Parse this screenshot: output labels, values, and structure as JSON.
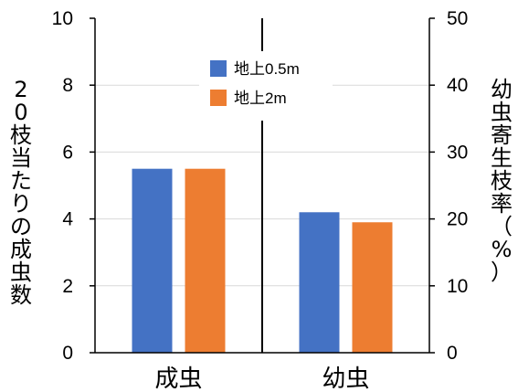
{
  "chart_data": {
    "type": "bar",
    "categories": [
      "成虫",
      "幼虫"
    ],
    "series": [
      {
        "name": "地上0.5m",
        "color": "#4472C4",
        "values": [
          5.5,
          4.2
        ]
      },
      {
        "name": "地上2m",
        "color": "#ED7D31",
        "values": [
          5.5,
          3.9
        ]
      }
    ],
    "ylabel": "20枝当たりの成虫数",
    "ylabel_right": "幼虫寄生枝率（%）",
    "ylim": [
      0,
      10
    ],
    "yticks": [
      "0",
      "2",
      "4",
      "6",
      "8",
      "10"
    ],
    "ylim_right": [
      0,
      50
    ],
    "yticks_right": [
      "0",
      "10",
      "20",
      "30",
      "40",
      "50"
    ],
    "grid": true,
    "legend_position": "top-center",
    "divider": "vertical line between categories"
  }
}
